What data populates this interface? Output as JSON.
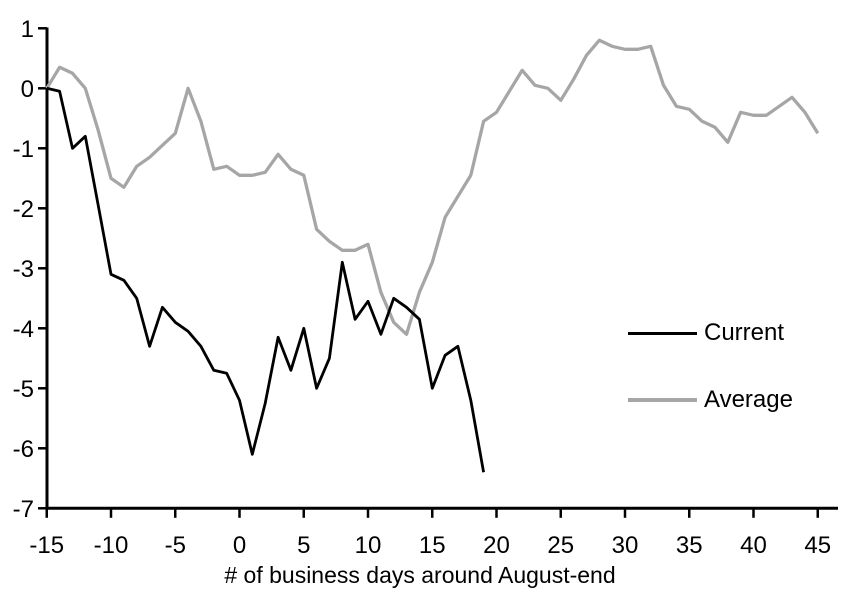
{
  "figure": {
    "background": "#ffffff",
    "axis_color": "#000000",
    "text_color": "#000000"
  },
  "chart_data": {
    "type": "line",
    "title": "",
    "xlabel": "# of business days around August-end",
    "ylabel": "",
    "xlim": [
      -15,
      45
    ],
    "ylim": [
      -7,
      1
    ],
    "grid": false,
    "legend_position": "right-middle",
    "x_ticks": [
      -15,
      -10,
      -5,
      0,
      5,
      10,
      15,
      20,
      25,
      30,
      35,
      40,
      45
    ],
    "y_ticks": [
      1,
      0,
      -1,
      -2,
      -3,
      -4,
      -5,
      -6,
      -7
    ],
    "series": [
      {
        "name": "Current",
        "color": "#000000",
        "x": [
          -15,
          -14,
          -13,
          -12,
          -11,
          -10,
          -9,
          -8,
          -7,
          -6,
          -5,
          -4,
          -3,
          -2,
          -1,
          0,
          1,
          2,
          3,
          4,
          5,
          6,
          7,
          8,
          9,
          10,
          11,
          12,
          13,
          14,
          15,
          16,
          17,
          18,
          19
        ],
        "values": [
          0.0,
          -0.05,
          -1.0,
          -0.8,
          -1.95,
          -3.1,
          -3.2,
          -3.5,
          -4.3,
          -3.65,
          -3.9,
          -4.05,
          -4.3,
          -4.7,
          -4.75,
          -5.2,
          -6.1,
          -5.25,
          -4.15,
          -4.7,
          -4.0,
          -5.0,
          -4.5,
          -2.9,
          -3.85,
          -3.55,
          -4.1,
          -3.5,
          -3.65,
          -3.85,
          -5.0,
          -4.45,
          -4.3,
          -5.2,
          -6.4
        ]
      },
      {
        "name": "Average",
        "color": "#a6a6a6",
        "x": [
          -15,
          -14,
          -13,
          -12,
          -11,
          -10,
          -9,
          -8,
          -7,
          -6,
          -5,
          -4,
          -3,
          -2,
          -1,
          0,
          1,
          2,
          3,
          4,
          5,
          6,
          7,
          8,
          9,
          10,
          11,
          12,
          13,
          14,
          15,
          16,
          17,
          18,
          19,
          20,
          21,
          22,
          23,
          24,
          25,
          26,
          27,
          28,
          29,
          30,
          31,
          32,
          33,
          34,
          35,
          36,
          37,
          38,
          39,
          40,
          41,
          42,
          43,
          44,
          45
        ],
        "values": [
          0.0,
          0.35,
          0.25,
          0.0,
          -0.7,
          -1.5,
          -1.65,
          -1.3,
          -1.15,
          -0.95,
          -0.75,
          0.0,
          -0.55,
          -1.35,
          -1.3,
          -1.45,
          -1.45,
          -1.4,
          -1.1,
          -1.35,
          -1.45,
          -2.35,
          -2.55,
          -2.7,
          -2.7,
          -2.6,
          -3.4,
          -3.9,
          -4.1,
          -3.4,
          -2.9,
          -2.15,
          -1.8,
          -1.45,
          -0.55,
          -0.4,
          -0.05,
          0.3,
          0.05,
          0.0,
          -0.2,
          0.15,
          0.55,
          0.8,
          0.7,
          0.65,
          0.65,
          0.7,
          0.05,
          -0.3,
          -0.35,
          -0.55,
          -0.65,
          -0.9,
          -0.4,
          -0.45,
          -0.45,
          -0.3,
          -0.15,
          -0.4,
          -0.75
        ]
      }
    ]
  }
}
